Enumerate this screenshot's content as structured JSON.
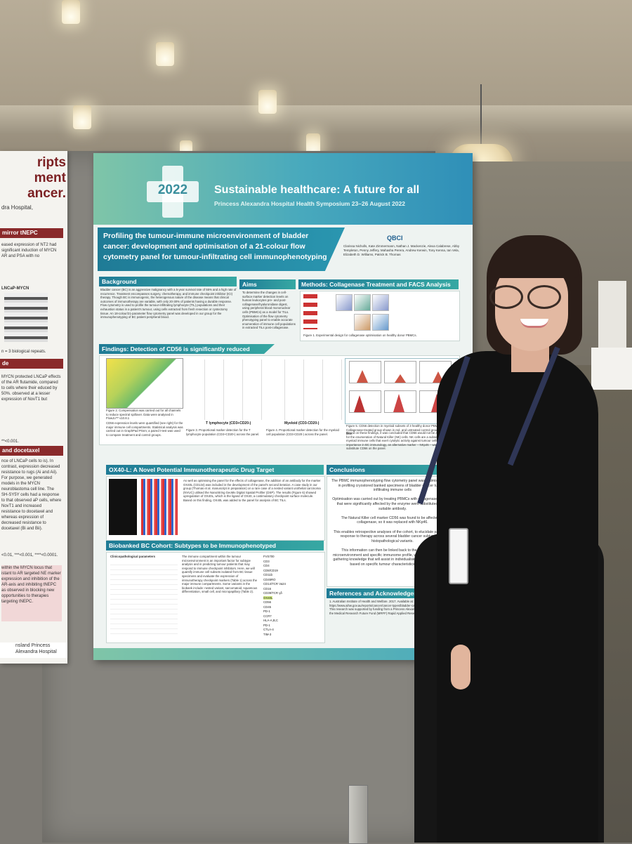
{
  "left_poster": {
    "title_lines": "ripts\nment\nancer.",
    "subtitle": "dra Hospital,",
    "section1": "mirror tNEPC",
    "section1_text": "eased expression of NT2 had significant induction of MYCN AR and PSA with no",
    "blot_label": "LNCaP-MYCN",
    "reps": "n = 3 biological repeats.",
    "section2": "de",
    "section2_text": "MYCN protected LNCaP effects of the AR flutamide, compared to cells where their educed by 50%. observed at a lesser expression of NovT1 but",
    "stats1": "**<0.001.",
    "section3": "and docetaxel",
    "section3_text": "nce of LNCaP cells to is). In contrast, expression decreased resistance to rugs (Ai and Aii). For purpose, we generated models in the MYCN neuroblastoma cell line. The SH-SY5Y cells had a response to that observed aP cells, where NovT1 and increased resistance to docetaxel and whereas expression of decreased resistance to docetaxel (Bi and Bii).",
    "stats2": "<0.01, ***<0.001, ****<0.0001.",
    "section4_text": "within the MYCN locus that istant to AR targeted NE marker expression and inhibition of the AR-axis and inhibiting tNEPC as observed in blocking new opportunities to therapies targeting tNEPC.",
    "footer_left": "nsland",
    "footer_right": "Princess Alexandra Hospital"
  },
  "poster": {
    "year": "2022",
    "banner_title": "Sustainable healthcare: A future for all",
    "banner_subtitle": "Princess Alexandra Hospital Health Symposium 23–26 August 2022",
    "title": "Profiling the tumour-immune microenvironment of bladder cancer: development and optimisation of a 21-colour flow cytometry panel for tumour-infiltrating cell immunophenotyping",
    "logos": "QBCI",
    "authors": "Clarissa Nicholls, Kate Zimmermann, Nathan J. Mackenzie, Alexa Calabrese, Abby Templeton, Penny Jeffery, Mahasha Perera, Andrew Kerwin, Tony Kenna, Ian Vela, Elizabeth D. Williams, Patrick B. Thomas",
    "sections": {
      "background": "Background",
      "aims": "Aims",
      "methods": "Methods: Collagenase Treatment and FACS Analysis",
      "findings": "Findings: Detection of CD56 is significantly reduced",
      "ox40": "OX40-L: A Novel Potential Immunotherapeutic Drug Target",
      "cohort": "Biobanked BC Cohort: Subtypes to be Immunophenotyped",
      "conclusions": "Conclusions",
      "references": "References and Acknowledgements"
    },
    "background_text": "Bladder cancer (BC) is an aggressive malignancy with a 5-year survival rate of 55% and a high rate of recurrence. Treatment encompasses surgery, chemotherapy, and immune checkpoint inhibitor (ICI) therapy. Though BC is immunogenic, the heterogenous nature of the disease means that clinical outcomes of immunotherapy are variable, with only 20-30% of patients having a durable response. Flow cytometry is used to profile the tumour-infiltrating lymphocyte (TIL) populations and their exhaustion status in a patient's tumour, using cells extracted from fresh resection or cystectomy tissue. An 18-colour/21-parameter flow cytometry panel was developed in our group for the immunophenotyping of BC patient peripheral blood.",
    "aims_text": "To determine the changes in cell-surface marker detection levels on human leukocytes pre- and post-collagenase/hyaluronidase digest, using peripheral blood mononuclear cells (PBMCs) as a model for TILs. Optimisation of the flow cytometry phenotyping panel to enable accurate enumeration of immune cell populations in extracted TILs post-collagenase.",
    "methods_caption": "Figure 1. Experimental design for collagenase optimisation on healthy donor PBMCs.",
    "fig2_caption": "Figure 2. Compensation was carried out for all channels to reduce spectral spillover. Data were analysed in FlowJo™ v10.8.1",
    "fig2_note": "CD56 expression levels were quantified (see right) for the major immune cell compartments. Statistical analysis was carried out in GraphPad Prism; a paired t-test was used to compare treatment and control groups.",
    "t_label": "T lymphocyte (CD3+CD20-)",
    "myeloid_label": "Myeloid (CD3-CD20-)",
    "fig3_caption": "Figure 3. Proportional marker detection for the T lymphocyte population (CD3+CD20-) across the panel.",
    "fig4_caption": "Figure 4. Proportional marker detection for the myeloid cell population (CD3-CD20-) across the panel.",
    "fig5_caption": "Figure 5. CD56 detection in myeloid subsets of 3 healthy donor PBMCs. Collagenase-treated group shown in red, and untreated control group shown in blue.",
    "findings_text": "Based on these findings, it was concluded that CD56 would not be a viable marker for the enumeration of Natural Killer (NK) cells. NK cells are a subset of innate myeloid immune cells that exert cytolytic activity against tumour cells. Due to their importance in BC immunology, an alternative marker – NKp46 – was selected to substitute CD56 on the panel.",
    "ox40_text": "As well as optimising the panel for the effects of collagenase, the addition of an antibody for the marker OX40L (CD134) was included in the development of the panel's second iteration. A case study in our group (Thomas et al. manuscript in preparation) on a rare case of a nested variant urothelial carcinoma (NVUC) utilised the NanoString GeoMx Digital Spatial Profiler (DSP). The results (Figure 6) showed upregulation of OX40L, which is the ligand of OX40, a costimulatory checkpoint surface molecule. Based on this finding, OX40L was added to the panel for analysis of BC TILs.",
    "cohort_text": "The immune compartment within the tumour microenvironment is an important factor for subtype analysis and in predicting tumour patients that may respond to immune checkpoint inhibitors. Here, we will quantify immune cell subsets isolated from BC tissue specimens and evaluate the expression of immunotherapy checkpoint markers (Table 1) across the major immune compartments. Some variants in the biobank include: nested variant, sarcomatoid, squamous differentiation, small cell, and micropapillary (Table 2).",
    "table_title": "Clinicopathological parameters",
    "table_markers": [
      "FVS700",
      "CD3",
      "CD4",
      "CD8/CD19",
      "CD11b",
      "CD45RO",
      "CD14/TCR Va24",
      "CD16",
      "CD39/TCR γδ",
      "OX40L",
      "CD56",
      "CD45",
      "PD-1",
      "CCR7",
      "HLA-A,B,C",
      "PD-1",
      "CTLA-4",
      "TIM-3"
    ],
    "conclusions_text": "The PBMC immunophenotyping flow cytometry panel was optimised for use in profiling cryostored banked specimens of bladder cancer tumour-infiltrating immune cells\n\nOptimisation was carried out by treating PBMCs with collagenase. Markers that were significantly affected by the enzyme were substituted with a suitable antibody.\n\nThe Natural Killer cell marker CD56 was found to be affected by collagenase, so it was replaced with NKp46.\n\nThis enables retrospective analyses of the cohort, to elucidate patterns of response to therapy across several bladder cancer subtypes and histopathological variants.\n\nThis information can then be linked back to the patient tumour's microenvironment and specific immunome profile, with the ultimate goal of gathering knowledge that will assist in individualising patient management based on specific tumour characteristics and biology.",
    "references_text": "1. Australian Institute of Health and Welfare. 2017. Available at: https://www.aihw.gov.au/reports/cancer/cancer-types/bladder-cancer/bladder-cancer-statistics. This research was supported by funding from a Princess Alexandra Research Foundation award, the Medical Research Future Fund (MRFF) Rapid Applied Research Translation Program (TRA)."
  },
  "colors": {
    "banner_start": "#7fc5a8",
    "banner_end": "#2f8fb8",
    "section_head": "#1f7b96",
    "left_poster_accent": "#8a2a2b"
  }
}
